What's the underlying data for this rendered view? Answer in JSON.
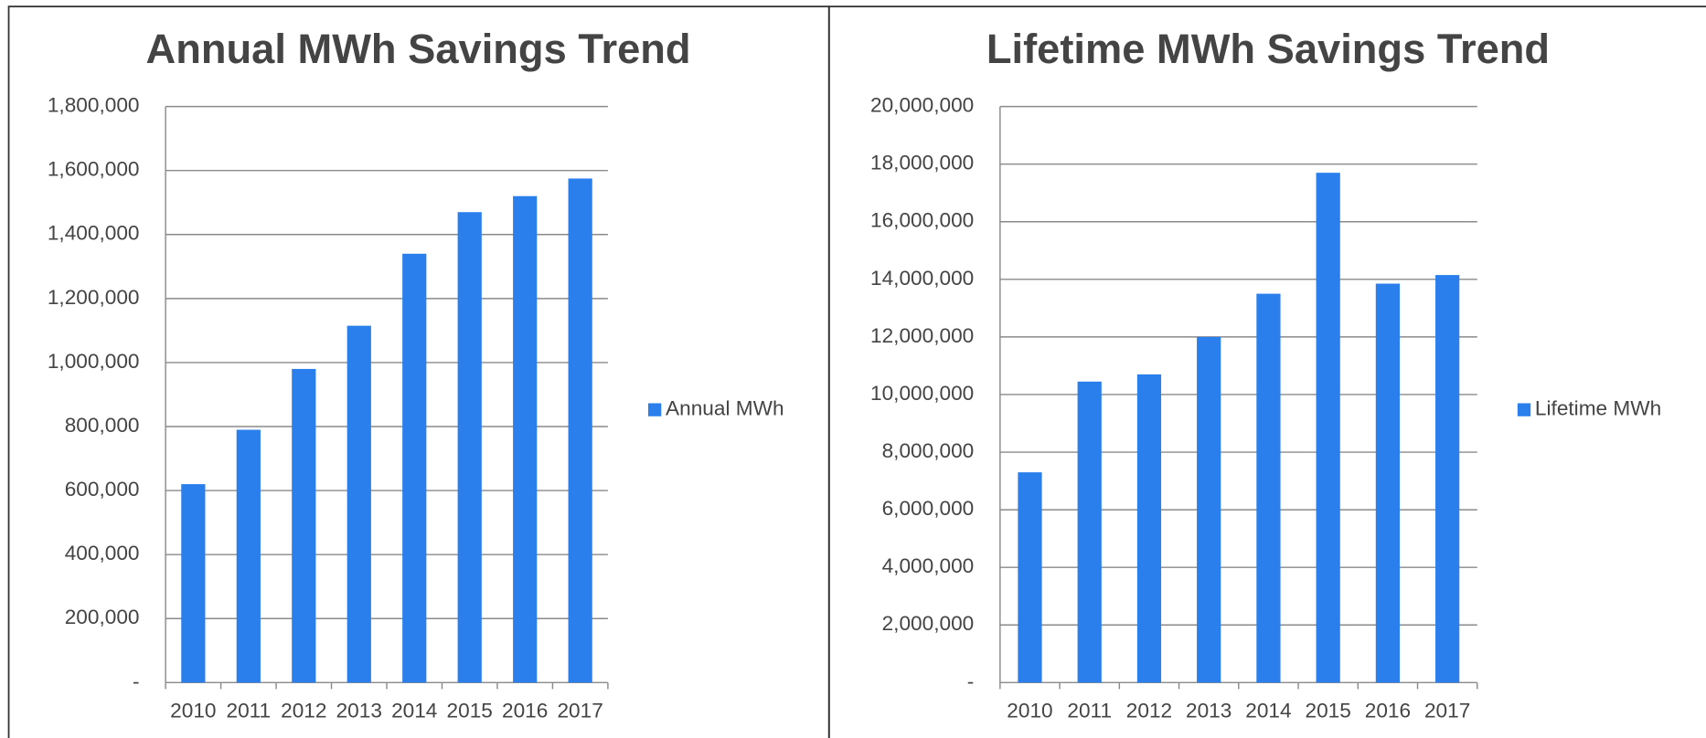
{
  "chart_data": [
    {
      "type": "bar",
      "title": "Annual MWh Savings Trend",
      "categories": [
        "2010",
        "2011",
        "2012",
        "2013",
        "2014",
        "2015",
        "2016",
        "2017"
      ],
      "series": [
        {
          "name": "Annual MWh",
          "color": "#2a7fec",
          "values": [
            620000,
            790000,
            980000,
            1115000,
            1340000,
            1470000,
            1520000,
            1575000
          ]
        }
      ],
      "ylim": [
        0,
        1800000
      ],
      "yticks": [
        {
          "value": 0,
          "label": "-"
        },
        {
          "value": 200000,
          "label": "200,000"
        },
        {
          "value": 400000,
          "label": "400,000"
        },
        {
          "value": 600000,
          "label": "600,000"
        },
        {
          "value": 800000,
          "label": "800,000"
        },
        {
          "value": 1000000,
          "label": "1,000,000"
        },
        {
          "value": 1200000,
          "label": "1,200,000"
        },
        {
          "value": 1400000,
          "label": "1,400,000"
        },
        {
          "value": 1600000,
          "label": "1,600,000"
        },
        {
          "value": 1800000,
          "label": "1,800,000"
        }
      ],
      "grid": true,
      "legend": "right"
    },
    {
      "type": "bar",
      "title": "Lifetime MWh Savings Trend",
      "categories": [
        "2010",
        "2011",
        "2012",
        "2013",
        "2014",
        "2015",
        "2016",
        "2017"
      ],
      "series": [
        {
          "name": "Lifetime MWh",
          "color": "#2a7fec",
          "values": [
            7300000,
            10450000,
            10700000,
            12000000,
            13500000,
            17700000,
            13850000,
            14150000
          ]
        }
      ],
      "ylim": [
        0,
        20000000
      ],
      "yticks": [
        {
          "value": 0,
          "label": "-"
        },
        {
          "value": 2000000,
          "label": "2,000,000"
        },
        {
          "value": 4000000,
          "label": "4,000,000"
        },
        {
          "value": 6000000,
          "label": "6,000,000"
        },
        {
          "value": 8000000,
          "label": "8,000,000"
        },
        {
          "value": 10000000,
          "label": "10,000,000"
        },
        {
          "value": 12000000,
          "label": "12,000,000"
        },
        {
          "value": 14000000,
          "label": "14,000,000"
        },
        {
          "value": 16000000,
          "label": "16,000,000"
        },
        {
          "value": 18000000,
          "label": "18,000,000"
        },
        {
          "value": 20000000,
          "label": "20,000,000"
        }
      ],
      "grid": true,
      "legend": "right"
    }
  ]
}
